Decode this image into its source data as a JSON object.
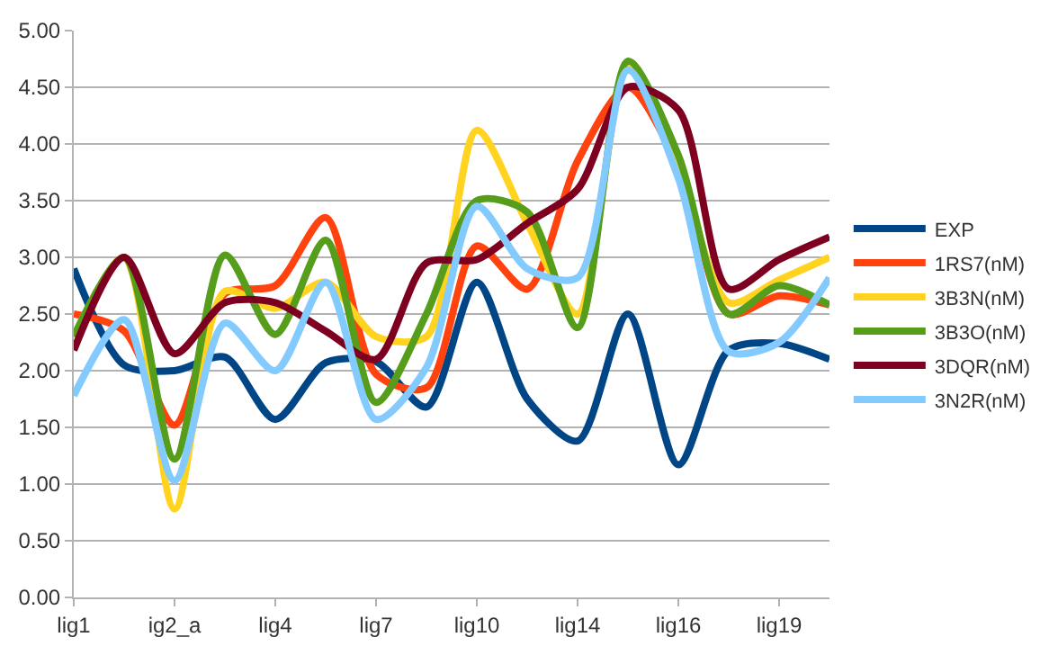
{
  "chart_data": {
    "type": "line",
    "categories": [
      "lig1",
      null,
      "ig2_a",
      null,
      "lig4",
      null,
      "lig7",
      null,
      "lig10",
      null,
      "lig14",
      null,
      "lig16",
      null,
      "lig19",
      null
    ],
    "series": [
      {
        "name": "EXP",
        "color": "#004586",
        "values": [
          2.9,
          2.05,
          2.0,
          2.12,
          1.57,
          2.07,
          2.08,
          1.68,
          2.78,
          1.75,
          1.38,
          2.5,
          1.17,
          2.18,
          2.24,
          2.1
        ]
      },
      {
        "name": "1RS7(nM)",
        "color": "#ff420e",
        "values": [
          2.5,
          2.35,
          1.52,
          2.68,
          2.75,
          3.35,
          1.97,
          1.85,
          3.1,
          2.72,
          3.85,
          4.5,
          3.8,
          2.5,
          2.66,
          2.58
        ]
      },
      {
        "name": "3B3N(nM)",
        "color": "#ffd320",
        "values": [
          2.3,
          3.0,
          0.78,
          2.7,
          2.55,
          2.78,
          2.3,
          2.3,
          4.12,
          3.3,
          2.5,
          4.7,
          3.8,
          2.6,
          2.8,
          3.0
        ]
      },
      {
        "name": "3B3O(nM)",
        "color": "#579d1c",
        "values": [
          2.3,
          3.0,
          1.22,
          3.02,
          2.32,
          3.15,
          1.72,
          2.5,
          3.5,
          3.4,
          2.38,
          4.73,
          3.9,
          2.5,
          2.75,
          2.58
        ]
      },
      {
        "name": "3DQR(nM)",
        "color": "#7e0021",
        "values": [
          2.18,
          3.0,
          2.15,
          2.6,
          2.6,
          2.35,
          2.1,
          2.95,
          2.98,
          3.3,
          3.6,
          4.5,
          4.3,
          2.72,
          2.98,
          3.18
        ]
      },
      {
        "name": "3N2R(nM)",
        "color": "#83caff",
        "values": [
          1.78,
          2.45,
          1.03,
          2.42,
          2.0,
          2.78,
          1.57,
          2.03,
          3.45,
          2.9,
          2.82,
          4.65,
          3.7,
          2.17,
          2.25,
          2.82
        ]
      }
    ],
    "ylim": [
      0,
      5
    ],
    "yticks": [
      {
        "value": 0,
        "label": "0.00"
      },
      {
        "value": 0.5,
        "label": "0.50"
      },
      {
        "value": 1,
        "label": "1.00"
      },
      {
        "value": 1.5,
        "label": "1.50"
      },
      {
        "value": 2,
        "label": "2.00"
      },
      {
        "value": 2.5,
        "label": "2.50"
      },
      {
        "value": 3,
        "label": "3.00"
      },
      {
        "value": 3.5,
        "label": "3.50"
      },
      {
        "value": 4,
        "label": "4.00"
      },
      {
        "value": 4.5,
        "label": "4.50"
      },
      {
        "value": 5,
        "label": "5.00"
      }
    ],
    "grid": "y",
    "legend": "right"
  }
}
